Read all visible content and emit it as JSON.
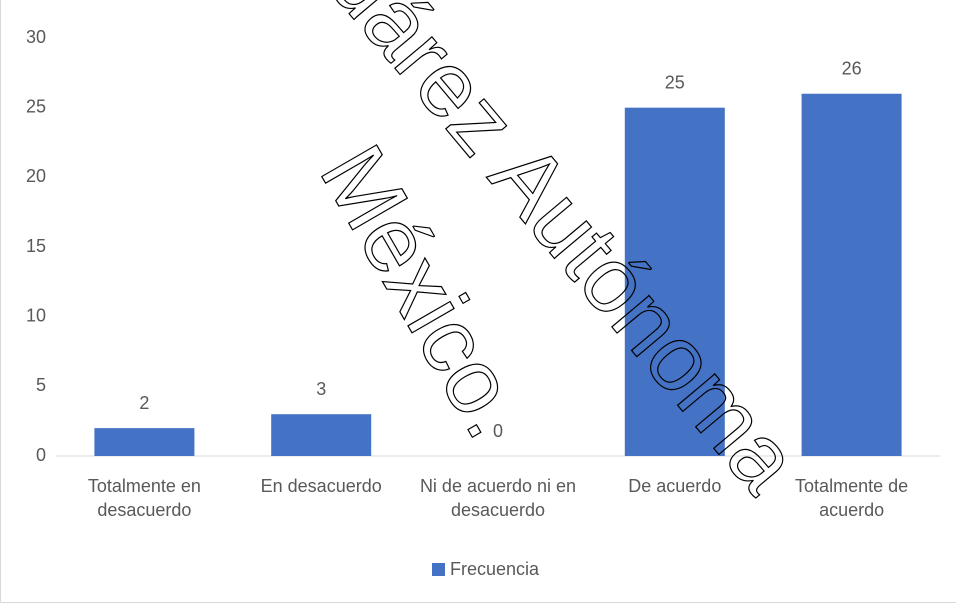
{
  "chart_data": {
    "type": "bar",
    "categories": [
      "Totalmente en desacuerdo",
      "En desacuerdo",
      "Ni de acuerdo ni en desacuerdo",
      "De acuerdo",
      "Totalmente de acuerdo"
    ],
    "series": [
      {
        "name": "Frecuencia",
        "color": "#4472c4",
        "values": [
          2,
          3,
          0,
          25,
          26
        ]
      }
    ],
    "ylim": [
      0,
      30
    ],
    "yticks": [
      0,
      5,
      10,
      15,
      20,
      25,
      30
    ],
    "grid": false,
    "legend": "bottom",
    "watermark": [
      "uárez Autónoma",
      "México."
    ]
  }
}
